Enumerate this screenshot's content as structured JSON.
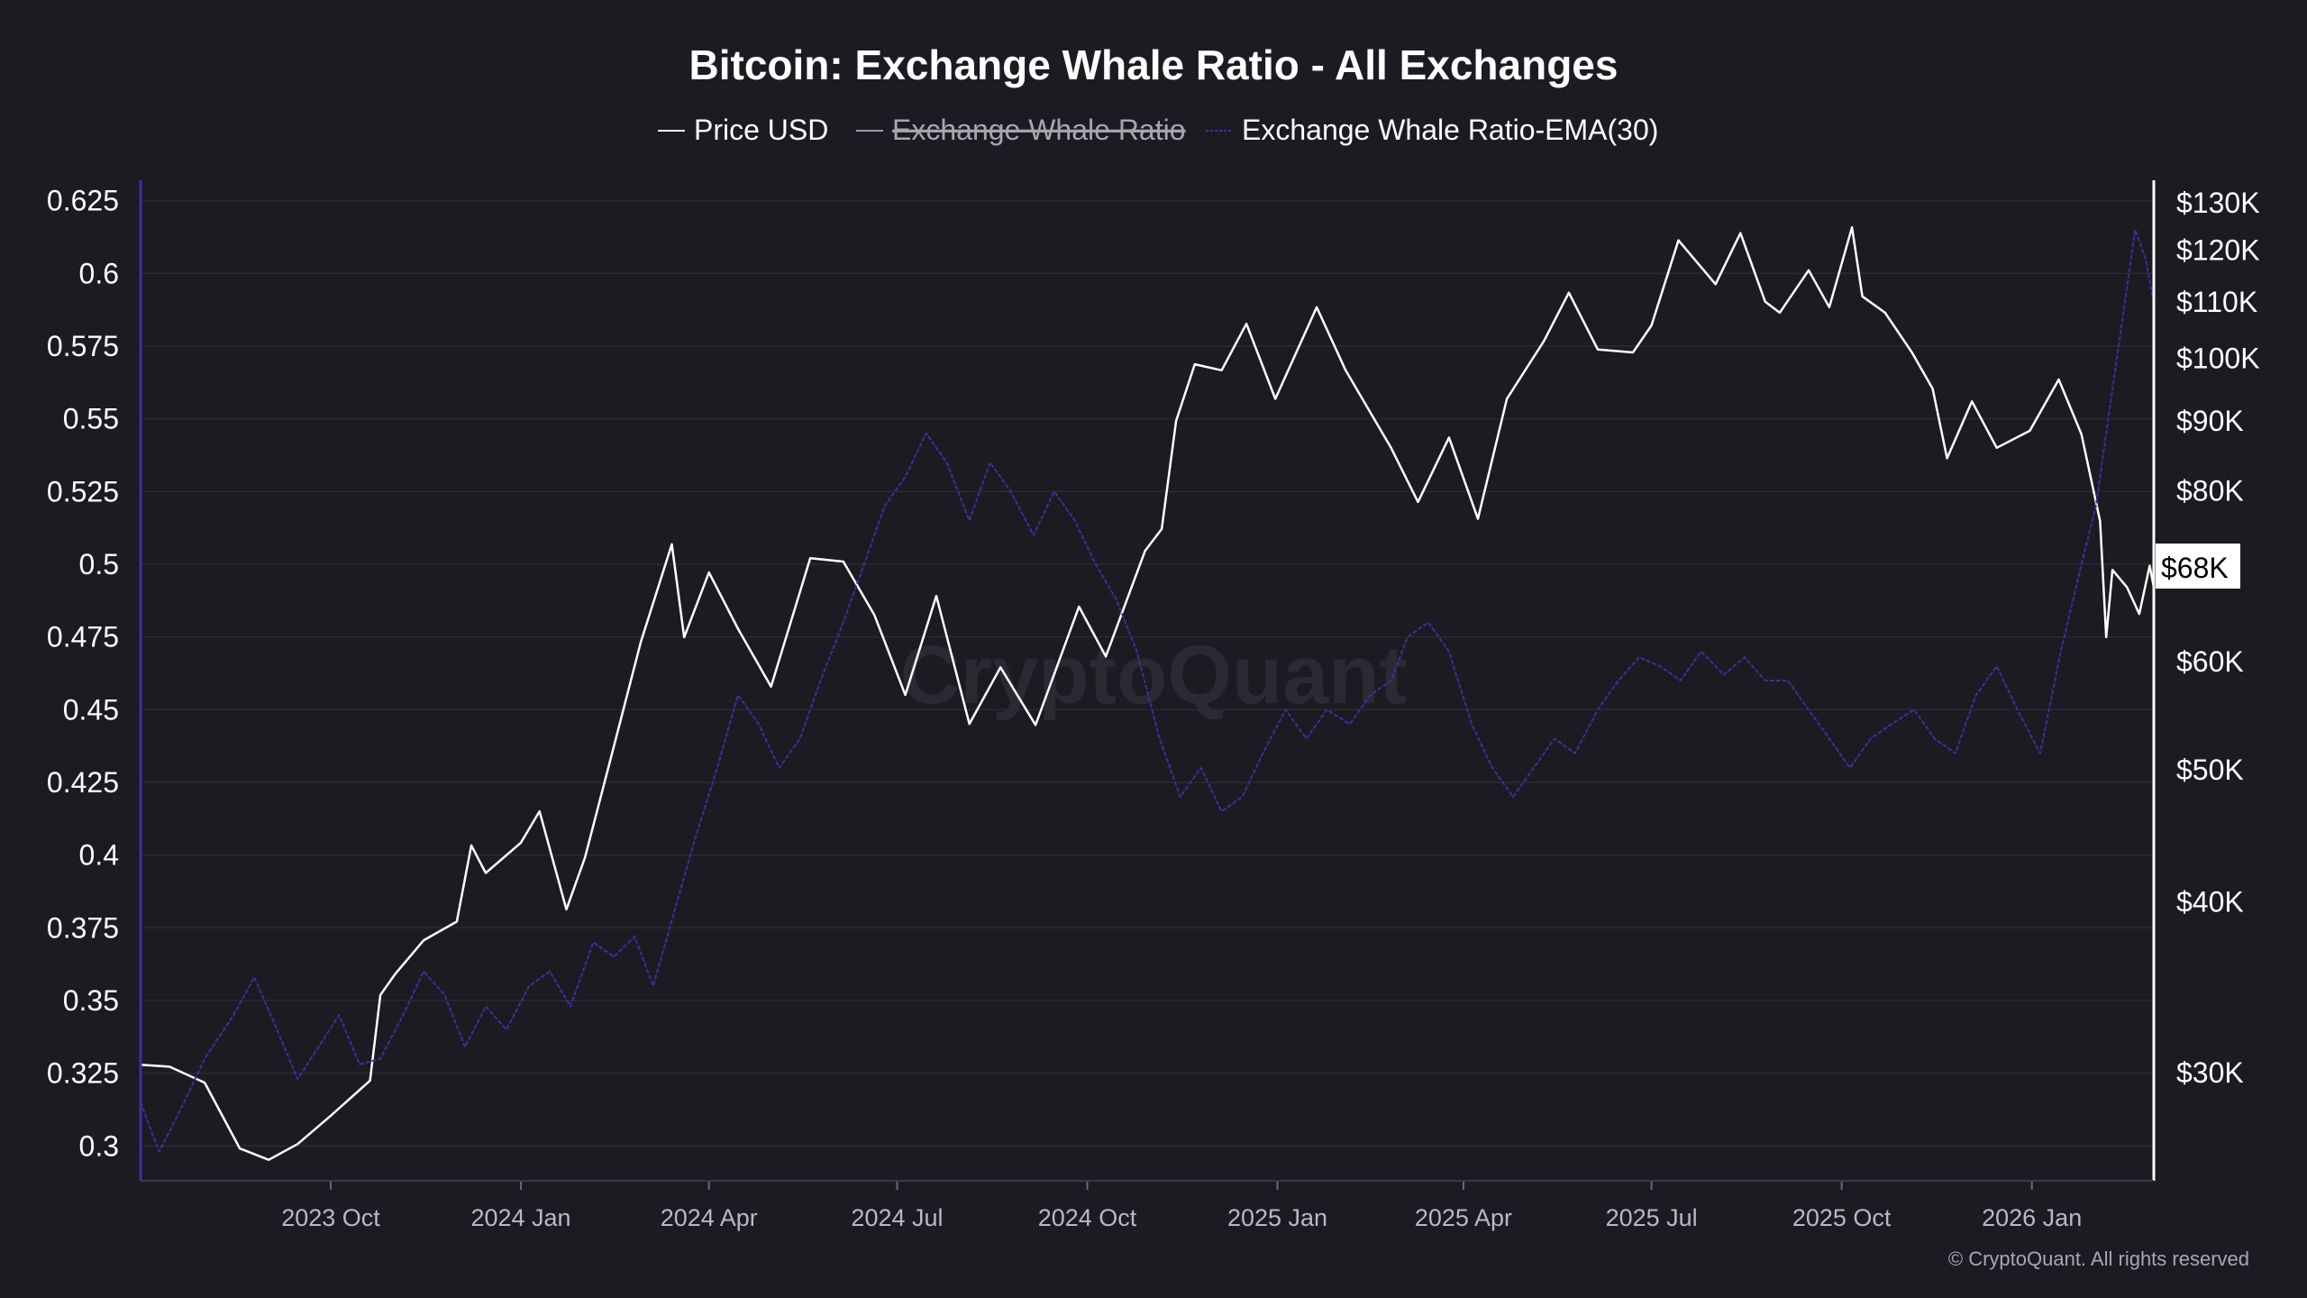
{
  "chart_data": {
    "type": "line",
    "title": "Bitcoin: Exchange Whale Ratio - All Exchanges",
    "legend": {
      "placement": "top-center",
      "items": [
        {
          "name": "Price USD",
          "color": "#ffffff",
          "state": "visible"
        },
        {
          "name": "Exchange Whale Ratio",
          "color": "#9a9aa5",
          "state": "hidden"
        },
        {
          "name": "Exchange Whale Ratio-EMA(30)",
          "color": "#3a30a0",
          "state": "visible"
        }
      ]
    },
    "x_ticks": [
      "2023 Oct",
      "2024 Jan",
      "2024 Apr",
      "2024 Jul",
      "2024 Oct",
      "2025 Jan",
      "2025 Apr",
      "2025 Jul",
      "2025 Oct",
      "2026 Jan"
    ],
    "x_range": [
      "2023-07-01",
      "2026-03-01"
    ],
    "left_axis": {
      "ticks": [
        "0.625",
        "0.6",
        "0.575",
        "0.55",
        "0.525",
        "0.5",
        "0.475",
        "0.45",
        "0.425",
        "0.4",
        "0.375",
        "0.35",
        "0.325",
        "0.3"
      ],
      "range": [
        0.288,
        0.632
      ]
    },
    "right_axis": {
      "scale": "log",
      "ticks": [
        "$130K",
        "$120K",
        "$110K",
        "$100K",
        "$90K",
        "$80K",
        "$60K",
        "$50K",
        "$40K",
        "$30K"
      ],
      "current_price_label": "$68K",
      "range": [
        25000,
        135000
      ]
    },
    "grid": true,
    "series": [
      {
        "name": "Price USD",
        "axis": "right",
        "color": "#ffffff",
        "points": [
          [
            "2023-07-01",
            30400
          ],
          [
            "2023-07-15",
            30300
          ],
          [
            "2023-08-01",
            29500
          ],
          [
            "2023-08-18",
            26400
          ],
          [
            "2023-09-01",
            25900
          ],
          [
            "2023-09-15",
            26600
          ],
          [
            "2023-10-01",
            27900
          ],
          [
            "2023-10-20",
            29600
          ],
          [
            "2023-10-25",
            34200
          ],
          [
            "2023-11-01",
            35400
          ],
          [
            "2023-11-15",
            37500
          ],
          [
            "2023-12-01",
            38700
          ],
          [
            "2023-12-08",
            44000
          ],
          [
            "2023-12-15",
            42000
          ],
          [
            "2024-01-01",
            44200
          ],
          [
            "2024-01-10",
            46600
          ],
          [
            "2024-01-23",
            39500
          ],
          [
            "2024-02-01",
            43100
          ],
          [
            "2024-02-15",
            52000
          ],
          [
            "2024-02-28",
            62000
          ],
          [
            "2024-03-14",
            73100
          ],
          [
            "2024-03-20",
            62500
          ],
          [
            "2024-04-01",
            69700
          ],
          [
            "2024-04-15",
            63400
          ],
          [
            "2024-05-01",
            57500
          ],
          [
            "2024-05-20",
            71400
          ],
          [
            "2024-06-05",
            71000
          ],
          [
            "2024-06-20",
            64900
          ],
          [
            "2024-07-05",
            56700
          ],
          [
            "2024-07-20",
            67000
          ],
          [
            "2024-08-05",
            54000
          ],
          [
            "2024-08-20",
            59400
          ],
          [
            "2024-09-06",
            53900
          ],
          [
            "2024-09-27",
            65800
          ],
          [
            "2024-10-10",
            60500
          ],
          [
            "2024-10-29",
            72300
          ],
          [
            "2024-11-06",
            75000
          ],
          [
            "2024-11-13",
            90000
          ],
          [
            "2024-11-22",
            99000
          ],
          [
            "2024-12-05",
            98000
          ],
          [
            "2024-12-17",
            106000
          ],
          [
            "2024-12-31",
            93400
          ],
          [
            "2025-01-20",
            109000
          ],
          [
            "2025-02-03",
            98000
          ],
          [
            "2025-02-25",
            86000
          ],
          [
            "2025-03-10",
            78500
          ],
          [
            "2025-03-25",
            87500
          ],
          [
            "2025-04-08",
            76300
          ],
          [
            "2025-04-22",
            93400
          ],
          [
            "2025-05-10",
            103000
          ],
          [
            "2025-05-22",
            111700
          ],
          [
            "2025-06-05",
            101500
          ],
          [
            "2025-06-22",
            101000
          ],
          [
            "2025-07-01",
            105700
          ],
          [
            "2025-07-14",
            122000
          ],
          [
            "2025-08-01",
            113300
          ],
          [
            "2025-08-13",
            123500
          ],
          [
            "2025-08-25",
            110000
          ],
          [
            "2025-09-01",
            108000
          ],
          [
            "2025-09-15",
            116000
          ],
          [
            "2025-09-25",
            109000
          ],
          [
            "2025-10-06",
            124700
          ],
          [
            "2025-10-11",
            111000
          ],
          [
            "2025-10-22",
            108000
          ],
          [
            "2025-11-04",
            101000
          ],
          [
            "2025-11-14",
            95000
          ],
          [
            "2025-11-21",
            84500
          ],
          [
            "2025-12-03",
            93000
          ],
          [
            "2025-12-15",
            86000
          ],
          [
            "2025-12-31",
            88500
          ],
          [
            "2026-01-14",
            96500
          ],
          [
            "2026-01-25",
            88000
          ],
          [
            "2026-02-03",
            76000
          ],
          [
            "2026-02-06",
            62500
          ],
          [
            "2026-02-09",
            70000
          ],
          [
            "2026-02-16",
            68000
          ],
          [
            "2026-02-22",
            65000
          ],
          [
            "2026-02-27",
            70500
          ],
          [
            "2026-03-01",
            68000
          ]
        ]
      },
      {
        "name": "Exchange Whale Ratio-EMA(30)",
        "axis": "left",
        "color": "#3a30a0",
        "points": [
          [
            "2023-07-01",
            0.315
          ],
          [
            "2023-07-10",
            0.298
          ],
          [
            "2023-07-20",
            0.312
          ],
          [
            "2023-08-01",
            0.33
          ],
          [
            "2023-08-15",
            0.345
          ],
          [
            "2023-08-25",
            0.358
          ],
          [
            "2023-09-05",
            0.34
          ],
          [
            "2023-09-15",
            0.323
          ],
          [
            "2023-09-25",
            0.334
          ],
          [
            "2023-10-05",
            0.345
          ],
          [
            "2023-10-15",
            0.328
          ],
          [
            "2023-10-25",
            0.33
          ],
          [
            "2023-11-05",
            0.345
          ],
          [
            "2023-11-15",
            0.36
          ],
          [
            "2023-11-25",
            0.352
          ],
          [
            "2023-12-05",
            0.334
          ],
          [
            "2023-12-15",
            0.348
          ],
          [
            "2023-12-25",
            0.34
          ],
          [
            "2024-01-05",
            0.355
          ],
          [
            "2024-01-15",
            0.36
          ],
          [
            "2024-01-25",
            0.348
          ],
          [
            "2024-02-05",
            0.37
          ],
          [
            "2024-02-15",
            0.365
          ],
          [
            "2024-02-25",
            0.372
          ],
          [
            "2024-03-05",
            0.355
          ],
          [
            "2024-03-15",
            0.38
          ],
          [
            "2024-03-25",
            0.405
          ],
          [
            "2024-04-05",
            0.43
          ],
          [
            "2024-04-15",
            0.455
          ],
          [
            "2024-04-25",
            0.445
          ],
          [
            "2024-05-05",
            0.43
          ],
          [
            "2024-05-15",
            0.44
          ],
          [
            "2024-05-25",
            0.46
          ],
          [
            "2024-06-05",
            0.48
          ],
          [
            "2024-06-15",
            0.5
          ],
          [
            "2024-06-25",
            0.52
          ],
          [
            "2024-07-05",
            0.53
          ],
          [
            "2024-07-15",
            0.545
          ],
          [
            "2024-07-25",
            0.535
          ],
          [
            "2024-08-05",
            0.515
          ],
          [
            "2024-08-15",
            0.535
          ],
          [
            "2024-08-25",
            0.525
          ],
          [
            "2024-09-05",
            0.51
          ],
          [
            "2024-09-15",
            0.525
          ],
          [
            "2024-09-25",
            0.515
          ],
          [
            "2024-10-05",
            0.5
          ],
          [
            "2024-10-15",
            0.488
          ],
          [
            "2024-10-25",
            0.47
          ],
          [
            "2024-11-05",
            0.44
          ],
          [
            "2024-11-15",
            0.42
          ],
          [
            "2024-11-25",
            0.43
          ],
          [
            "2024-12-05",
            0.415
          ],
          [
            "2024-12-15",
            0.42
          ],
          [
            "2024-12-25",
            0.435
          ],
          [
            "2025-01-05",
            0.45
          ],
          [
            "2025-01-15",
            0.44
          ],
          [
            "2025-01-25",
            0.45
          ],
          [
            "2025-02-05",
            0.445
          ],
          [
            "2025-02-15",
            0.455
          ],
          [
            "2025-02-25",
            0.46
          ],
          [
            "2025-03-05",
            0.475
          ],
          [
            "2025-03-15",
            0.48
          ],
          [
            "2025-03-25",
            0.47
          ],
          [
            "2025-04-05",
            0.445
          ],
          [
            "2025-04-15",
            0.43
          ],
          [
            "2025-04-25",
            0.42
          ],
          [
            "2025-05-05",
            0.43
          ],
          [
            "2025-05-15",
            0.44
          ],
          [
            "2025-05-25",
            0.435
          ],
          [
            "2025-06-05",
            0.45
          ],
          [
            "2025-06-15",
            0.46
          ],
          [
            "2025-06-25",
            0.468
          ],
          [
            "2025-07-05",
            0.465
          ],
          [
            "2025-07-15",
            0.46
          ],
          [
            "2025-07-25",
            0.47
          ],
          [
            "2025-08-05",
            0.462
          ],
          [
            "2025-08-15",
            0.468
          ],
          [
            "2025-08-25",
            0.46
          ],
          [
            "2025-09-05",
            0.46
          ],
          [
            "2025-09-15",
            0.45
          ],
          [
            "2025-09-25",
            0.44
          ],
          [
            "2025-10-05",
            0.43
          ],
          [
            "2025-10-15",
            0.44
          ],
          [
            "2025-10-25",
            0.445
          ],
          [
            "2025-11-05",
            0.45
          ],
          [
            "2025-11-15",
            0.44
          ],
          [
            "2025-11-25",
            0.435
          ],
          [
            "2025-12-05",
            0.455
          ],
          [
            "2025-12-15",
            0.465
          ],
          [
            "2025-12-25",
            0.45
          ],
          [
            "2026-01-05",
            0.435
          ],
          [
            "2026-01-15",
            0.47
          ],
          [
            "2026-01-25",
            0.5
          ],
          [
            "2026-02-01",
            0.52
          ],
          [
            "2026-02-08",
            0.555
          ],
          [
            "2026-02-15",
            0.59
          ],
          [
            "2026-02-20",
            0.615
          ],
          [
            "2026-02-25",
            0.605
          ],
          [
            "2026-03-01",
            0.59
          ]
        ]
      }
    ]
  },
  "watermark": "CryptoQuant",
  "copyright": "© CryptoQuant. All rights reserved",
  "colors": {
    "background": "#1c1b21",
    "grid": "#2a2a31",
    "left_axis_line": "#3a30a0",
    "right_axis_line": "#ffffff",
    "price_line": "#ffffff",
    "ema_line": "#3a30a0"
  }
}
